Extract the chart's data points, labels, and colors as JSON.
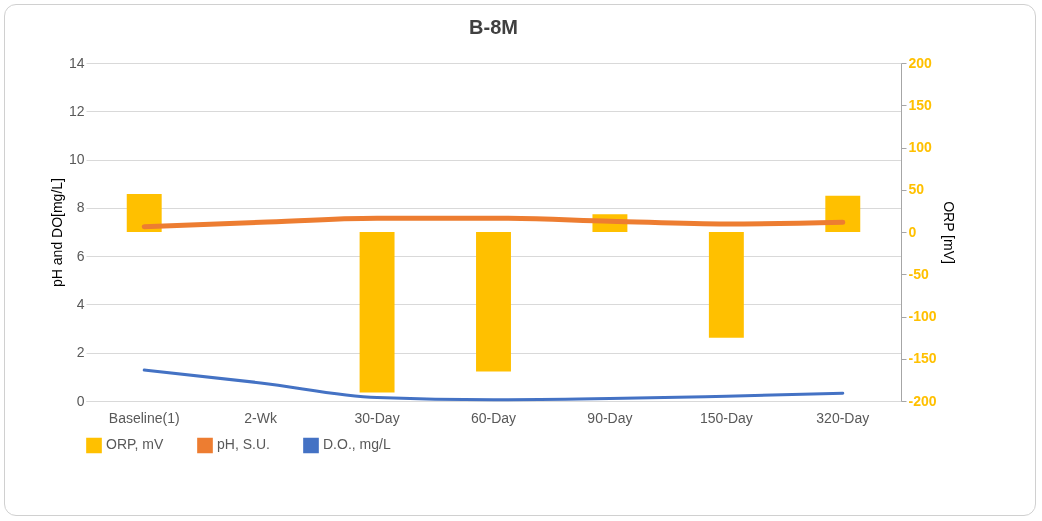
{
  "chart_data": {
    "type": "bar",
    "title": "B-8M",
    "ylabel": "pH and DO[mg/L]",
    "y2label": "ORP [mV]",
    "categories": [
      "Baseline(1)",
      "2-Wk",
      "30-Day",
      "60-Day",
      "90-Day",
      "150-Day",
      "320-Day"
    ],
    "series": [
      {
        "name": "ORP, mV",
        "axis": "y2",
        "color": "#ffc000",
        "values": [
          45,
          null,
          -190,
          -165,
          21,
          -125,
          43
        ]
      },
      {
        "name": "pH, S.U.",
        "type": "line",
        "color": "#ed7d31",
        "values": [
          7.22,
          7.4,
          7.57,
          7.57,
          7.45,
          7.33,
          7.4
        ]
      },
      {
        "name": "D.O., mg/L",
        "type": "line",
        "color": "#4472c4",
        "values": [
          1.28,
          0.75,
          0.14,
          0.05,
          0.1,
          0.2,
          0.32
        ]
      }
    ],
    "ylim": [
      0,
      14
    ],
    "yticks": [
      0,
      2,
      4,
      6,
      8,
      10,
      12,
      14
    ],
    "y2lim": [
      -200,
      200
    ],
    "y2ticks": [
      -200,
      -150,
      -100,
      -50,
      0,
      50,
      100,
      150,
      200
    ],
    "grid": "y",
    "legend": "bottom",
    "marker": "none",
    "line_style": "solid"
  }
}
